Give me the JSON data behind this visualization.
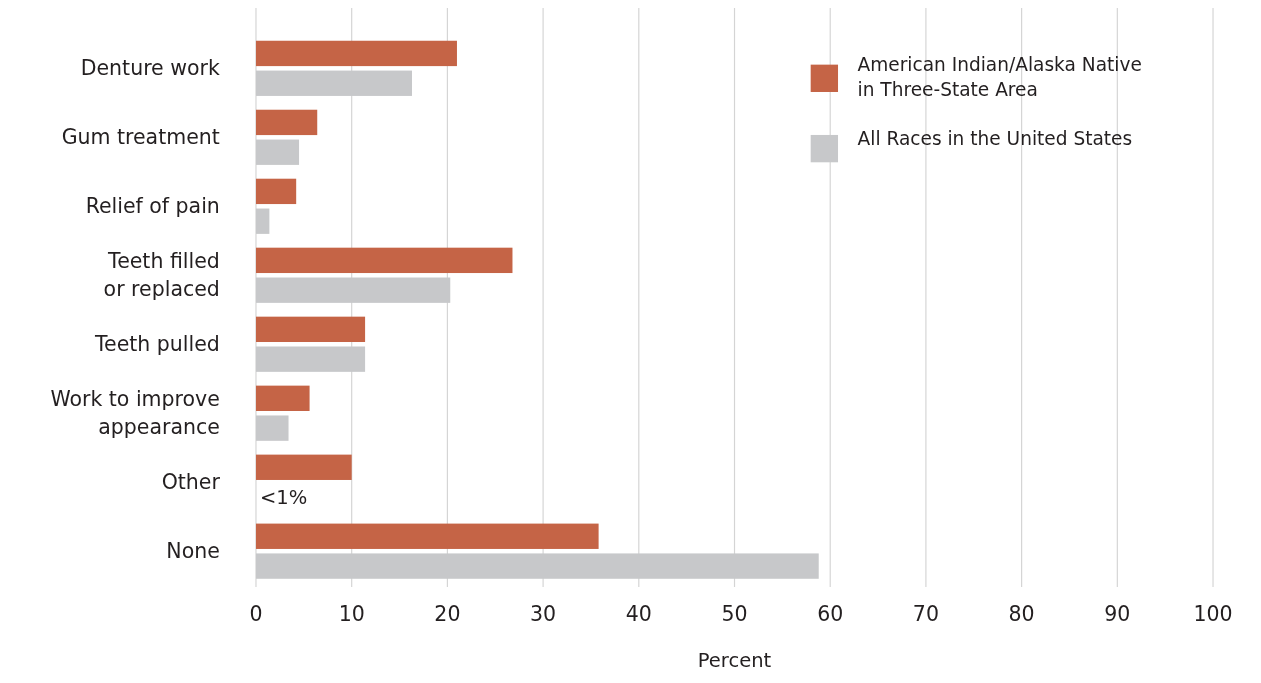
{
  "chart_data": {
    "type": "bar",
    "orientation": "horizontal",
    "xlabel": "Percent",
    "categories": [
      "Denture work",
      "Gum treatment",
      "Relief of pain",
      "Teeth filled\nor replaced",
      "Teeth pulled",
      "Work to improve\nappearance",
      "Other",
      "None"
    ],
    "series": [
      {
        "name": "American Indian/Alaska Native\nin Three-State Area",
        "color": "#c56446",
        "values": [
          21,
          6.4,
          4.2,
          26.8,
          11.4,
          5.6,
          10,
          35.8
        ]
      },
      {
        "name": "All Races in the United States",
        "color": "#c7c8ca",
        "values": [
          16.3,
          4.5,
          1.4,
          20.3,
          11.4,
          3.4,
          null,
          58.8
        ]
      }
    ],
    "annotations": [
      {
        "text": "<1%",
        "x": 0,
        "y": "Other"
      }
    ],
    "xlim": [
      0,
      100
    ],
    "xticks": [
      0,
      10,
      20,
      30,
      40,
      50,
      60,
      70,
      80,
      90,
      100
    ],
    "grid": "x",
    "legend": "top right"
  }
}
